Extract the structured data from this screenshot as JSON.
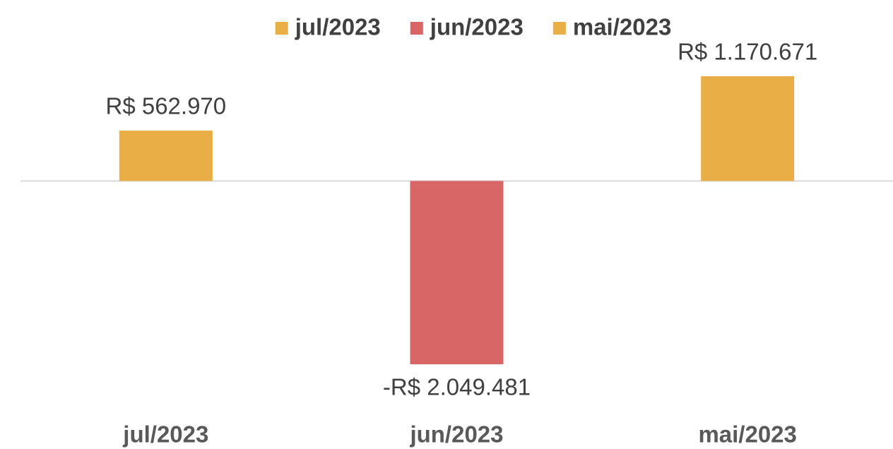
{
  "chart_data": {
    "type": "bar",
    "categories": [
      "jul/2023",
      "jun/2023",
      "mai/2023"
    ],
    "series": [
      {
        "name": "jul/2023",
        "color": "#E9AF46",
        "values": [
          562970,
          null,
          null
        ],
        "value_labels": [
          "R$ 562.970",
          null,
          null
        ]
      },
      {
        "name": "jun/2023",
        "color": "#D96666",
        "values": [
          null,
          -2049481,
          null
        ],
        "value_labels": [
          null,
          "-R$ 2.049.481",
          null
        ]
      },
      {
        "name": "mai/2023",
        "color": "#E9AF46",
        "values": [
          null,
          null,
          1170671
        ],
        "value_labels": [
          null,
          null,
          "R$ 1.170.671"
        ]
      }
    ],
    "legend": "top"
  }
}
